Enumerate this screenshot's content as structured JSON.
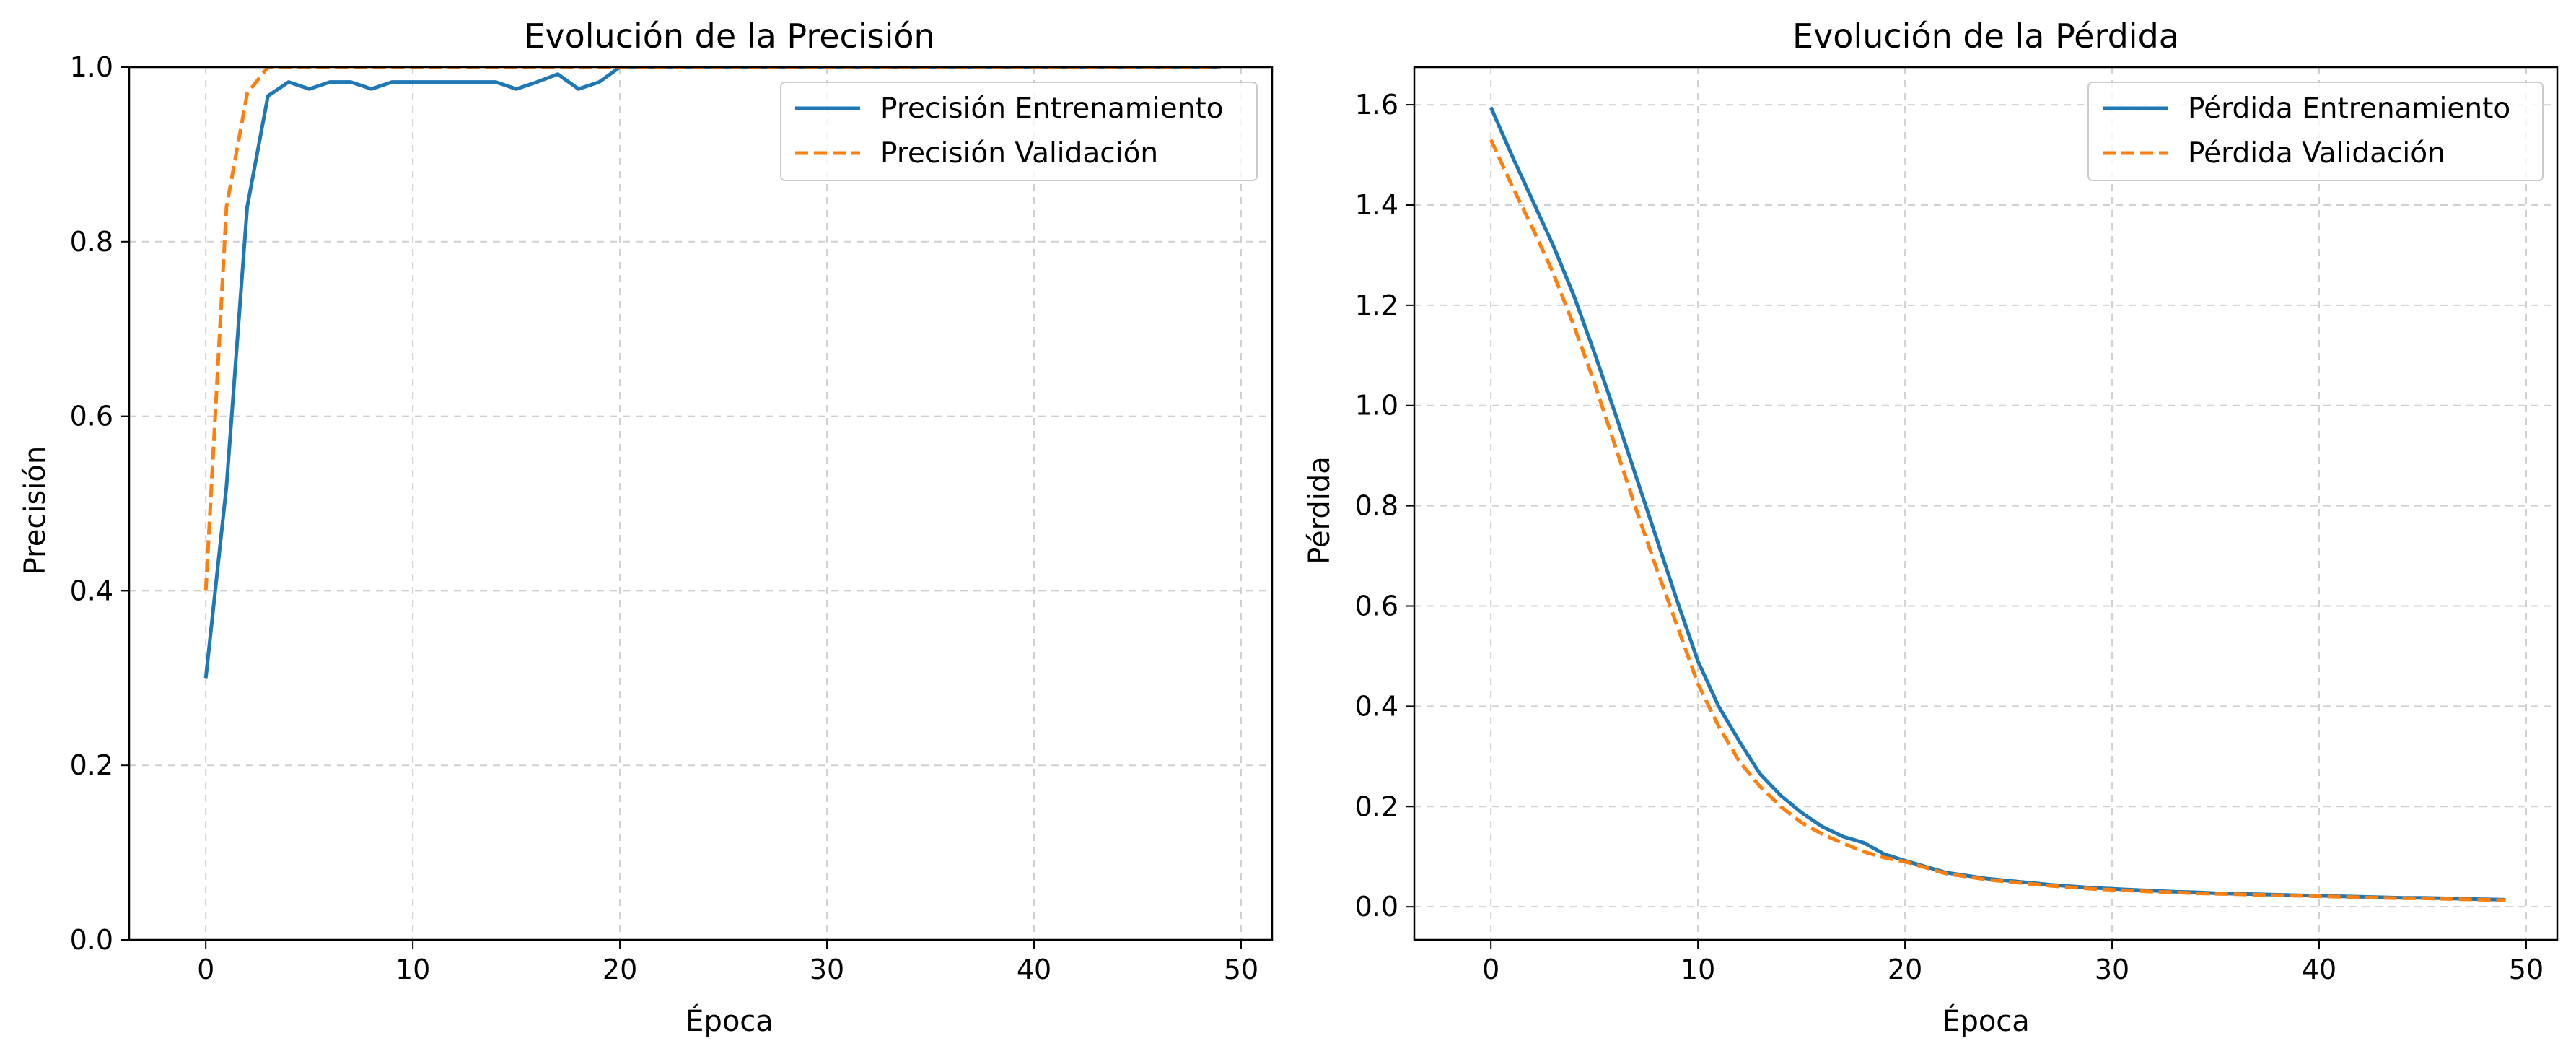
{
  "chart_data": [
    {
      "type": "line",
      "title": "Evolución de la Precisión",
      "xlabel": "Época",
      "ylabel": "Precisión",
      "xlim": [
        -3.7,
        51.5
      ],
      "ylim": [
        0.0,
        1.0
      ],
      "xticks": [
        "0",
        "10",
        "20",
        "30",
        "40",
        "50"
      ],
      "yticks": [
        "0.0",
        "0.2",
        "0.4",
        "0.6",
        "0.8",
        "1.0"
      ],
      "grid": true,
      "legend_position": "top-right",
      "series": [
        {
          "name": "Precisión Entrenamiento",
          "color": "#1f77b4",
          "style": "solid",
          "x": [
            0,
            1,
            2,
            3,
            4,
            5,
            6,
            7,
            8,
            9,
            10,
            11,
            12,
            13,
            14,
            15,
            16,
            17,
            18,
            19,
            20,
            21,
            22,
            23,
            24,
            25,
            26,
            27,
            28,
            29,
            30,
            31,
            32,
            33,
            34,
            35,
            36,
            37,
            38,
            39,
            40,
            41,
            42,
            43,
            44,
            45,
            46,
            47,
            48,
            49
          ],
          "y": [
            0.3,
            0.52,
            0.84,
            0.967,
            0.983,
            0.975,
            0.983,
            0.983,
            0.975,
            0.983,
            0.983,
            0.983,
            0.983,
            0.983,
            0.983,
            0.975,
            0.983,
            0.992,
            0.975,
            0.983,
            1.0,
            1.0,
            1.0,
            1.0,
            1.0,
            1.0,
            1.0,
            1.0,
            1.0,
            1.0,
            1.0,
            1.0,
            1.0,
            1.0,
            1.0,
            1.0,
            1.0,
            1.0,
            1.0,
            1.0,
            1.0,
            1.0,
            1.0,
            1.0,
            1.0,
            1.0,
            1.0,
            1.0,
            1.0,
            1.0
          ]
        },
        {
          "name": "Precisión Validación",
          "color": "#ff7f0e",
          "style": "dashed",
          "x": [
            0,
            1,
            2,
            3,
            4,
            5,
            6,
            7,
            8,
            9,
            10,
            11,
            12,
            13,
            14,
            15,
            16,
            17,
            18,
            19,
            20,
            21,
            22,
            23,
            24,
            25,
            26,
            27,
            28,
            29,
            30,
            31,
            32,
            33,
            34,
            35,
            36,
            37,
            38,
            39,
            40,
            41,
            42,
            43,
            44,
            45,
            46,
            47,
            48,
            49
          ],
          "y": [
            0.4,
            0.84,
            0.97,
            1.0,
            1.0,
            1.0,
            1.0,
            1.0,
            1.0,
            1.0,
            1.0,
            1.0,
            1.0,
            1.0,
            1.0,
            1.0,
            1.0,
            1.0,
            1.0,
            1.0,
            1.0,
            1.0,
            1.0,
            1.0,
            1.0,
            1.0,
            1.0,
            1.0,
            1.0,
            1.0,
            1.0,
            1.0,
            1.0,
            1.0,
            1.0,
            1.0,
            1.0,
            1.0,
            1.0,
            1.0,
            1.0,
            1.0,
            1.0,
            1.0,
            1.0,
            1.0,
            1.0,
            1.0,
            1.0,
            1.0
          ]
        }
      ]
    },
    {
      "type": "line",
      "title": "Evolución de la Pérdida",
      "xlabel": "Época",
      "ylabel": "Pérdida",
      "xlim": [
        -3.7,
        51.5
      ],
      "ylim": [
        -0.066,
        1.675
      ],
      "xticks": [
        "0",
        "10",
        "20",
        "30",
        "40",
        "50"
      ],
      "yticks": [
        "0.0",
        "0.2",
        "0.4",
        "0.6",
        "0.8",
        "1.0",
        "1.2",
        "1.4",
        "1.6"
      ],
      "grid": true,
      "legend_position": "top-right",
      "series": [
        {
          "name": "Pérdida Entrenamiento",
          "color": "#1f77b4",
          "style": "solid",
          "x": [
            0,
            1,
            2,
            3,
            4,
            5,
            6,
            7,
            8,
            9,
            10,
            11,
            12,
            13,
            14,
            15,
            16,
            17,
            18,
            19,
            20,
            21,
            22,
            23,
            24,
            25,
            26,
            27,
            28,
            29,
            30,
            31,
            32,
            33,
            34,
            35,
            36,
            37,
            38,
            39,
            40,
            41,
            42,
            43,
            44,
            45,
            46,
            47,
            48,
            49
          ],
          "y": [
            1.595,
            1.5,
            1.41,
            1.32,
            1.22,
            1.105,
            0.985,
            0.86,
            0.735,
            0.61,
            0.49,
            0.4,
            0.33,
            0.265,
            0.222,
            0.188,
            0.16,
            0.14,
            0.128,
            0.105,
            0.092,
            0.08,
            0.068,
            0.062,
            0.056,
            0.052,
            0.048,
            0.044,
            0.041,
            0.038,
            0.036,
            0.034,
            0.032,
            0.03,
            0.029,
            0.027,
            0.026,
            0.025,
            0.024,
            0.023,
            0.022,
            0.021,
            0.02,
            0.019,
            0.018,
            0.018,
            0.017,
            0.016,
            0.015,
            0.014
          ]
        },
        {
          "name": "Pérdida Validación",
          "color": "#ff7f0e",
          "style": "dashed",
          "x": [
            0,
            1,
            2,
            3,
            4,
            5,
            6,
            7,
            8,
            9,
            10,
            11,
            12,
            13,
            14,
            15,
            16,
            17,
            18,
            19,
            20,
            21,
            22,
            23,
            24,
            25,
            26,
            27,
            28,
            29,
            30,
            31,
            32,
            33,
            34,
            35,
            36,
            37,
            38,
            39,
            40,
            41,
            42,
            43,
            44,
            45,
            46,
            47,
            48,
            49
          ],
          "y": [
            1.53,
            1.44,
            1.355,
            1.265,
            1.16,
            1.045,
            0.92,
            0.795,
            0.675,
            0.56,
            0.445,
            0.36,
            0.29,
            0.24,
            0.2,
            0.168,
            0.145,
            0.127,
            0.11,
            0.098,
            0.09,
            0.078,
            0.066,
            0.06,
            0.054,
            0.05,
            0.046,
            0.042,
            0.039,
            0.036,
            0.034,
            0.032,
            0.03,
            0.029,
            0.027,
            0.026,
            0.025,
            0.024,
            0.023,
            0.022,
            0.021,
            0.02,
            0.019,
            0.018,
            0.017,
            0.017,
            0.016,
            0.015,
            0.014,
            0.013
          ]
        }
      ]
    }
  ]
}
